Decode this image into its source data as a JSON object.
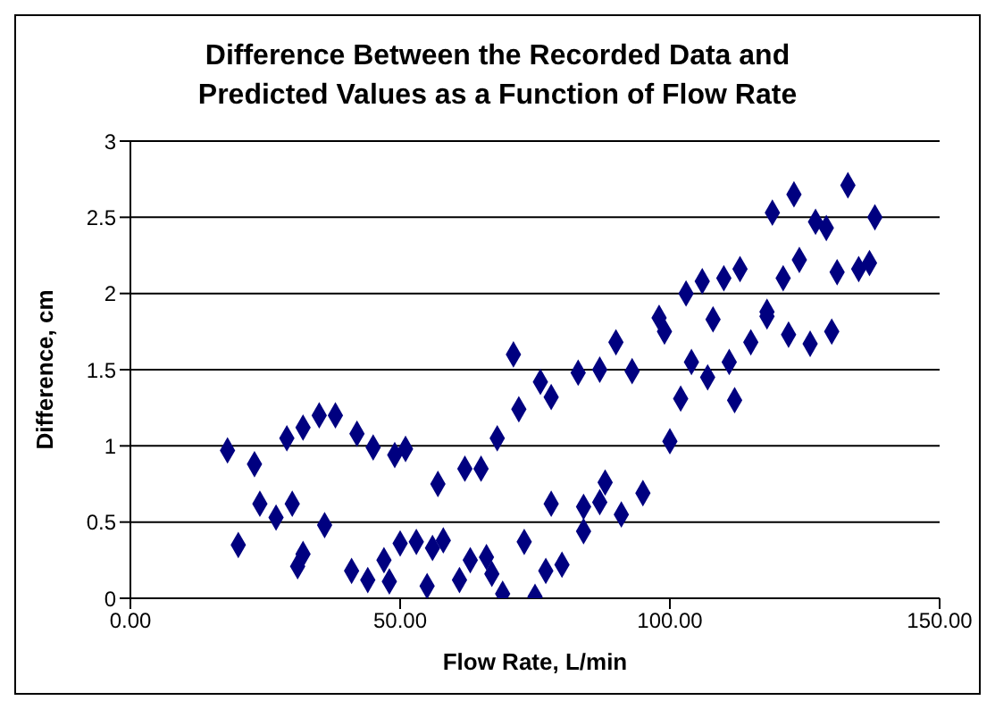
{
  "chart_data": {
    "type": "scatter",
    "title": "Difference Between the Recorded Data and Predicted Values as a Function of Flow Rate",
    "xlabel": "Flow Rate, L/min",
    "ylabel": "Difference, cm",
    "xlim": [
      0,
      150
    ],
    "xticks": [
      {
        "value": 0,
        "label": "0.00"
      },
      {
        "value": 50,
        "label": "50.00"
      },
      {
        "value": 100,
        "label": "100.00"
      },
      {
        "value": 150,
        "label": "150.00"
      }
    ],
    "ylim": [
      0,
      3
    ],
    "yticks": [
      0,
      0.5,
      1,
      1.5,
      2,
      2.5,
      3
    ],
    "grid": "y",
    "marker": "diamond",
    "series": [
      {
        "color": "#000080",
        "x": [
          18,
          20,
          23,
          24,
          27,
          29,
          30,
          31,
          32,
          32,
          35,
          36,
          38,
          41,
          42,
          44,
          45,
          47,
          48,
          49,
          50,
          51,
          53,
          55,
          56,
          57,
          58,
          61,
          62,
          63,
          65,
          66,
          67,
          68,
          69,
          71,
          72,
          73,
          75,
          76,
          77,
          78,
          78,
          80,
          83,
          84,
          84,
          87,
          87,
          88,
          90,
          91,
          93,
          95,
          98,
          99,
          100,
          102,
          103,
          104,
          106,
          107,
          108,
          110,
          111,
          112,
          113,
          115,
          118,
          118,
          119,
          121,
          122,
          123,
          124,
          126,
          127,
          129,
          130,
          131,
          133,
          135,
          137,
          138
        ],
        "values": [
          0.97,
          0.35,
          0.88,
          0.62,
          0.53,
          1.05,
          0.62,
          0.21,
          1.12,
          0.29,
          1.2,
          0.48,
          1.2,
          0.18,
          1.08,
          0.12,
          0.99,
          0.25,
          0.11,
          0.94,
          0.36,
          0.98,
          0.37,
          0.08,
          0.33,
          0.75,
          0.38,
          0.12,
          0.85,
          0.25,
          0.85,
          0.27,
          0.16,
          1.05,
          0.03,
          1.6,
          1.24,
          0.37,
          0.01,
          1.42,
          0.18,
          0.62,
          1.32,
          0.22,
          1.48,
          0.6,
          0.44,
          1.5,
          0.63,
          0.76,
          1.68,
          0.55,
          1.49,
          0.69,
          1.84,
          1.75,
          1.03,
          1.31,
          2.0,
          1.55,
          2.08,
          1.45,
          1.83,
          2.1,
          1.55,
          1.3,
          2.16,
          1.68,
          1.85,
          1.88,
          2.53,
          2.1,
          1.73,
          2.65,
          2.22,
          1.67,
          2.47,
          2.43,
          1.75,
          2.14,
          2.71,
          2.16,
          2.2,
          2.5
        ]
      }
    ]
  }
}
